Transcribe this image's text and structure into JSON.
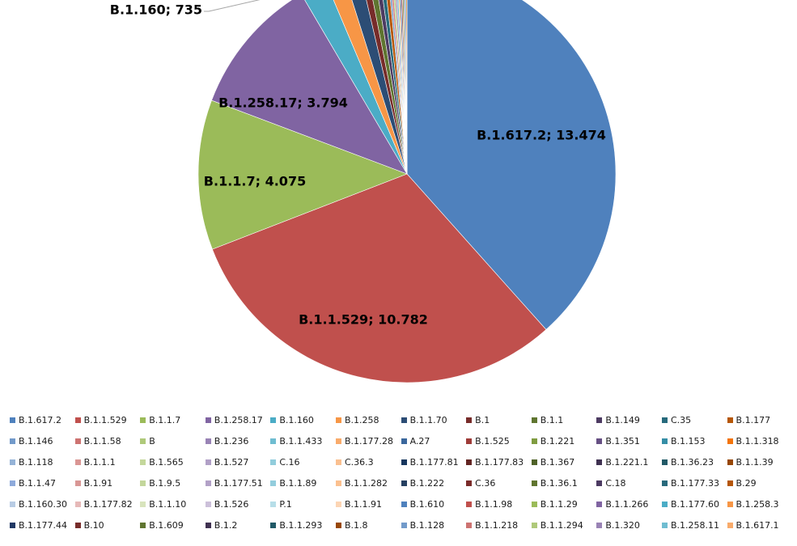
{
  "chart_data": {
    "type": "pie",
    "title": "",
    "slices": [
      {
        "label": "B.1.617.2",
        "value": 13474,
        "display": "B.1.617.2; 13.474",
        "color": "#4f81bd"
      },
      {
        "label": "B.1.1.529",
        "value": 10782,
        "display": "B.1.1.529; 10.782",
        "color": "#c0504d"
      },
      {
        "label": "B.1.1.7",
        "value": 4075,
        "display": "B.1.1.7; 4.075",
        "color": "#9bbb59"
      },
      {
        "label": "B.1.258.17",
        "value": 3794,
        "display": "B.1.258.17; 3.794",
        "color": "#8064a2"
      },
      {
        "label": "B.1.160",
        "value": 735,
        "display": "B.1.160; 735",
        "color": "#4bacc6"
      },
      {
        "label": "B.1.258",
        "value": 520,
        "color": "#f79646"
      },
      {
        "label": "B.1.1.70",
        "value": 430,
        "color": "#2c4d75"
      },
      {
        "label": "B.1",
        "value": 200,
        "color": "#772c2a"
      },
      {
        "label": "B.1.1",
        "value": 180,
        "color": "#5f7530"
      },
      {
        "label": "B.1.149",
        "value": 140,
        "color": "#4d3b62"
      },
      {
        "label": "C.35",
        "value": 120,
        "color": "#276a7c"
      },
      {
        "label": "B.1.177",
        "value": 110,
        "color": "#b65708"
      },
      {
        "label": "B.1.146",
        "value": 60,
        "color": "#729aca"
      },
      {
        "label": "B.1.1.58",
        "value": 55,
        "color": "#cd7371"
      },
      {
        "label": "B",
        "value": 52,
        "color": "#afc97a"
      },
      {
        "label": "B.1.236",
        "value": 50,
        "color": "#9983b5"
      },
      {
        "label": "B.1.1.433",
        "value": 48,
        "color": "#6fbdd1"
      },
      {
        "label": "B.1.177.28",
        "value": 45,
        "color": "#f9ab6b"
      },
      {
        "label": "A.27",
        "value": 42,
        "color": "#3a679c"
      },
      {
        "label": "B.1.525",
        "value": 40,
        "color": "#9e3b38"
      },
      {
        "label": "B.1.221",
        "value": 38,
        "color": "#7f9c40"
      },
      {
        "label": "B.1.351",
        "value": 36,
        "color": "#664f83"
      },
      {
        "label": "B.1.153",
        "value": 34,
        "color": "#358ea6"
      },
      {
        "label": "B.1.1.318",
        "value": 32,
        "color": "#f3740b"
      }
    ]
  },
  "legend": {
    "rows": [
      [
        "B.1.617.2",
        "B.1.1.529",
        "B.1.1.7",
        "B.1.258.17",
        "B.1.160",
        "B.1.258",
        "B.1.1.70",
        "B.1",
        "B.1.1",
        "B.1.149",
        "C.35",
        "B.1.177"
      ],
      [
        "B.1.146",
        "B.1.1.58",
        "B",
        "B.1.236",
        "B.1.1.433",
        "B.1.177.28",
        "A.27",
        "B.1.525",
        "B.1.221",
        "B.1.351",
        "B.1.153",
        "B.1.1.318"
      ],
      [
        "B.1.118",
        "B.1.1.1",
        "B.1.565",
        "B.1.527",
        "C.16",
        "C.36.3",
        "B.1.177.81",
        "B.1.177.83",
        "B.1.367",
        "B.1.221.1",
        "B.1.36.23",
        "B.1.1.39"
      ],
      [
        "B.1.1.47",
        "B.1.91",
        "B.1.9.5",
        "B.1.177.51",
        "B.1.1.89",
        "B.1.1.282",
        "B.1.222",
        "C.36",
        "B.1.36.1",
        "C.18",
        "B.1.177.33",
        "B.29"
      ],
      [
        "B.1.160.30",
        "B.1.177.82",
        "B.1.1.10",
        "B.1.526",
        "P.1",
        "B.1.1.91",
        "B.1.610",
        "B.1.1.98",
        "B.1.1.29",
        "B.1.1.266",
        "B.1.177.60",
        "B.1.258.3"
      ],
      [
        "B.1.177.44",
        "B.10",
        "B.1.609",
        "B.1.2",
        "B.1.1.293",
        "B.1.8",
        "B.1.128",
        "B.1.1.218",
        "B.1.1.294",
        "B.1.320",
        "B.1.258.11",
        "B.1.617.1"
      ]
    ],
    "colors": [
      [
        "#4f81bd",
        "#c0504d",
        "#9bbb59",
        "#8064a2",
        "#4bacc6",
        "#f79646",
        "#2c4d75",
        "#772c2a",
        "#5f7530",
        "#4d3b62",
        "#276a7c",
        "#b65708"
      ],
      [
        "#729aca",
        "#cd7371",
        "#afc97a",
        "#9983b5",
        "#6fbdd1",
        "#f9ab6b",
        "#3a679c",
        "#9e3b38",
        "#7f9c40",
        "#664f83",
        "#358ea6",
        "#f3740b"
      ],
      [
        "#95b3d7",
        "#da9694",
        "#c4d79b",
        "#b1a0c7",
        "#92cddc",
        "#fac090",
        "#17375e",
        "#632523",
        "#4f6228",
        "#3f3151",
        "#215967",
        "#974706"
      ],
      [
        "#8eaadb",
        "#d99795",
        "#c3d69b",
        "#b2a1c7",
        "#93cddd",
        "#fbc08f",
        "#254061",
        "#7a2b29",
        "#60752f",
        "#4c3a62",
        "#27697b",
        "#b5560a"
      ],
      [
        "#b8cce4",
        "#e6b9b8",
        "#d8e4bc",
        "#ccc0da",
        "#b7dee8",
        "#fcd5b4",
        "#4f81bd",
        "#c0504d",
        "#9bbb59",
        "#8064a2",
        "#4bacc6",
        "#f79646"
      ],
      [
        "#1f3864",
        "#772c2a",
        "#5f7530",
        "#3f3151",
        "#215967",
        "#974706",
        "#729aca",
        "#cd7371",
        "#afc97a",
        "#9983b5",
        "#6fbdd1",
        "#f9ab6b"
      ]
    ]
  }
}
